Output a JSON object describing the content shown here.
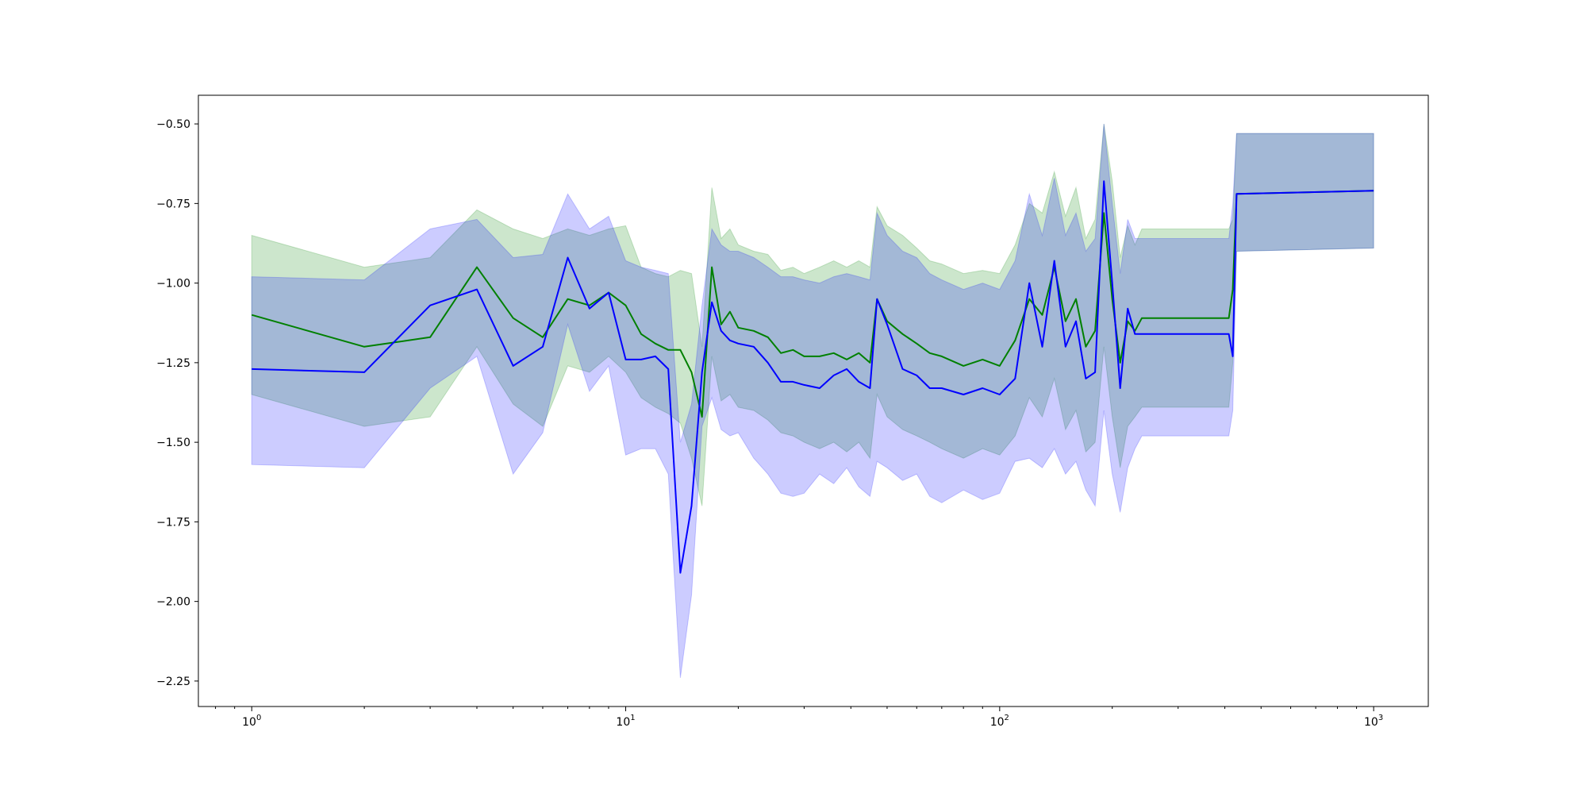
{
  "chart_data": {
    "type": "line",
    "title": "",
    "xlabel": "",
    "ylabel": "",
    "xscale": "log",
    "xlim": [
      0.72,
      1400
    ],
    "ylim": [
      -2.33,
      -0.41
    ],
    "grid": false,
    "legend": "none",
    "y_ticks": [
      {
        "value": -0.5,
        "label": "−0.50"
      },
      {
        "value": -0.75,
        "label": "−0.75"
      },
      {
        "value": -1.0,
        "label": "−1.00"
      },
      {
        "value": -1.25,
        "label": "−1.25"
      },
      {
        "value": -1.5,
        "label": "−1.50"
      },
      {
        "value": -1.75,
        "label": "−1.75"
      },
      {
        "value": -2.0,
        "label": "−2.00"
      },
      {
        "value": -2.25,
        "label": "−2.25"
      }
    ],
    "x_ticks": [
      {
        "value": 1,
        "base": "10",
        "exp": "0"
      },
      {
        "value": 10,
        "base": "10",
        "exp": "1"
      },
      {
        "value": 100,
        "base": "10",
        "exp": "2"
      },
      {
        "value": 1000,
        "base": "10",
        "exp": "3"
      }
    ],
    "series": [
      {
        "color": "#008000",
        "band_color": "#008000",
        "band_opacity": 0.2,
        "x": [
          1,
          2,
          3,
          4,
          5,
          6,
          7,
          8,
          9,
          10,
          11,
          12,
          13,
          14,
          15,
          16,
          17,
          18,
          19,
          20,
          22,
          24,
          26,
          28,
          30,
          33,
          36,
          39,
          42,
          45,
          47,
          50,
          55,
          60,
          65,
          70,
          80,
          90,
          100,
          110,
          120,
          130,
          140,
          150,
          160,
          170,
          180,
          190,
          200,
          210,
          220,
          230,
          240,
          410,
          420,
          430,
          1000
        ],
        "y": [
          -1.1,
          -1.2,
          -1.17,
          -0.95,
          -1.11,
          -1.17,
          -1.05,
          -1.07,
          -1.03,
          -1.07,
          -1.16,
          -1.19,
          -1.21,
          -1.21,
          -1.28,
          -1.42,
          -0.95,
          -1.13,
          -1.09,
          -1.14,
          -1.15,
          -1.17,
          -1.22,
          -1.21,
          -1.23,
          -1.23,
          -1.22,
          -1.24,
          -1.22,
          -1.25,
          -1.05,
          -1.12,
          -1.16,
          -1.19,
          -1.22,
          -1.23,
          -1.26,
          -1.24,
          -1.26,
          -1.18,
          -1.05,
          -1.1,
          -0.95,
          -1.12,
          -1.05,
          -1.2,
          -1.15,
          -0.78,
          -1.05,
          -1.25,
          -1.12,
          -1.15,
          -1.11,
          -1.11,
          -1.02,
          -0.72,
          -0.71
        ],
        "lower": [
          -1.35,
          -1.45,
          -1.42,
          -1.2,
          -1.38,
          -1.45,
          -1.26,
          -1.28,
          -1.23,
          -1.28,
          -1.36,
          -1.39,
          -1.41,
          -1.44,
          -1.55,
          -1.7,
          -1.23,
          -1.37,
          -1.35,
          -1.39,
          -1.4,
          -1.43,
          -1.47,
          -1.48,
          -1.5,
          -1.52,
          -1.5,
          -1.53,
          -1.5,
          -1.55,
          -1.35,
          -1.42,
          -1.46,
          -1.48,
          -1.5,
          -1.52,
          -1.55,
          -1.52,
          -1.54,
          -1.48,
          -1.36,
          -1.42,
          -1.3,
          -1.46,
          -1.4,
          -1.53,
          -1.5,
          -1.2,
          -1.42,
          -1.58,
          -1.45,
          -1.42,
          -1.39,
          -1.39,
          -1.25,
          -0.9,
          -0.89
        ],
        "upper": [
          -0.85,
          -0.95,
          -0.92,
          -0.77,
          -0.83,
          -0.86,
          -0.83,
          -0.85,
          -0.83,
          -0.82,
          -0.95,
          -0.97,
          -0.98,
          -0.96,
          -0.97,
          -1.2,
          -0.7,
          -0.86,
          -0.83,
          -0.88,
          -0.9,
          -0.91,
          -0.96,
          -0.95,
          -0.97,
          -0.95,
          -0.93,
          -0.95,
          -0.93,
          -0.95,
          -0.76,
          -0.82,
          -0.85,
          -0.89,
          -0.93,
          -0.94,
          -0.97,
          -0.96,
          -0.97,
          -0.88,
          -0.75,
          -0.78,
          -0.65,
          -0.79,
          -0.7,
          -0.86,
          -0.8,
          -0.5,
          -0.68,
          -0.92,
          -0.82,
          -0.88,
          -0.83,
          -0.83,
          -0.8,
          -0.53,
          -0.53
        ]
      },
      {
        "color": "#0000ff",
        "band_color": "#0000ff",
        "band_opacity": 0.2,
        "x": [
          1,
          2,
          3,
          4,
          5,
          6,
          7,
          8,
          9,
          10,
          11,
          12,
          13,
          14,
          15,
          16,
          17,
          18,
          19,
          20,
          22,
          24,
          26,
          28,
          30,
          33,
          36,
          39,
          42,
          45,
          47,
          50,
          55,
          60,
          65,
          70,
          80,
          90,
          100,
          110,
          120,
          130,
          140,
          150,
          160,
          170,
          180,
          190,
          200,
          210,
          220,
          230,
          240,
          410,
          420,
          430,
          1000
        ],
        "y": [
          -1.27,
          -1.28,
          -1.07,
          -1.02,
          -1.26,
          -1.2,
          -0.92,
          -1.08,
          -1.03,
          -1.24,
          -1.24,
          -1.23,
          -1.27,
          -1.91,
          -1.7,
          -1.28,
          -1.06,
          -1.15,
          -1.18,
          -1.19,
          -1.2,
          -1.25,
          -1.31,
          -1.31,
          -1.32,
          -1.33,
          -1.29,
          -1.27,
          -1.31,
          -1.33,
          -1.05,
          -1.13,
          -1.27,
          -1.29,
          -1.33,
          -1.33,
          -1.35,
          -1.33,
          -1.35,
          -1.3,
          -1.0,
          -1.2,
          -0.93,
          -1.2,
          -1.12,
          -1.3,
          -1.28,
          -0.68,
          -1.0,
          -1.33,
          -1.08,
          -1.16,
          -1.16,
          -1.16,
          -1.23,
          -0.72,
          -0.71
        ],
        "lower": [
          -1.57,
          -1.58,
          -1.33,
          -1.23,
          -1.6,
          -1.47,
          -1.13,
          -1.34,
          -1.26,
          -1.54,
          -1.52,
          -1.52,
          -1.6,
          -2.24,
          -1.98,
          -1.45,
          -1.36,
          -1.46,
          -1.48,
          -1.47,
          -1.55,
          -1.6,
          -1.66,
          -1.67,
          -1.66,
          -1.6,
          -1.63,
          -1.58,
          -1.64,
          -1.67,
          -1.56,
          -1.58,
          -1.62,
          -1.6,
          -1.67,
          -1.69,
          -1.65,
          -1.68,
          -1.66,
          -1.56,
          -1.55,
          -1.58,
          -1.52,
          -1.6,
          -1.56,
          -1.65,
          -1.7,
          -1.4,
          -1.6,
          -1.72,
          -1.58,
          -1.52,
          -1.48,
          -1.48,
          -1.4,
          -0.9,
          -0.89
        ],
        "upper": [
          -0.98,
          -0.99,
          -0.83,
          -0.8,
          -0.92,
          -0.91,
          -0.72,
          -0.83,
          -0.79,
          -0.93,
          -0.95,
          -0.96,
          -0.97,
          -1.5,
          -1.38,
          -1.07,
          -0.83,
          -0.88,
          -0.9,
          -0.9,
          -0.92,
          -0.95,
          -0.98,
          -0.98,
          -0.99,
          -1.0,
          -0.98,
          -0.97,
          -0.98,
          -0.99,
          -0.78,
          -0.85,
          -0.9,
          -0.92,
          -0.97,
          -0.99,
          -1.02,
          -1.0,
          -1.02,
          -0.93,
          -0.72,
          -0.85,
          -0.67,
          -0.85,
          -0.78,
          -0.9,
          -0.86,
          -0.5,
          -0.75,
          -0.97,
          -0.8,
          -0.86,
          -0.86,
          -0.86,
          -0.75,
          -0.53,
          -0.53
        ]
      }
    ]
  }
}
